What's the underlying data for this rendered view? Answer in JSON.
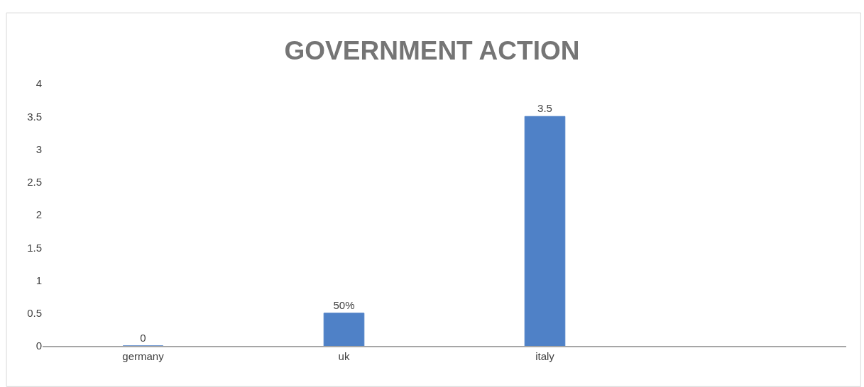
{
  "chart_data": {
    "type": "bar",
    "title": "GOVERNMENT ACTION",
    "categories": [
      "germany",
      "uk",
      "italy",
      null
    ],
    "values": [
      0,
      0.5,
      3.5,
      null
    ],
    "value_labels": [
      "0",
      "50%",
      "3.5",
      null
    ],
    "color": "#4f81c7",
    "ylim": [
      0,
      4
    ],
    "yticks": [
      0,
      0.5,
      1,
      1.5,
      2,
      2.5,
      3,
      3.5,
      4
    ]
  }
}
